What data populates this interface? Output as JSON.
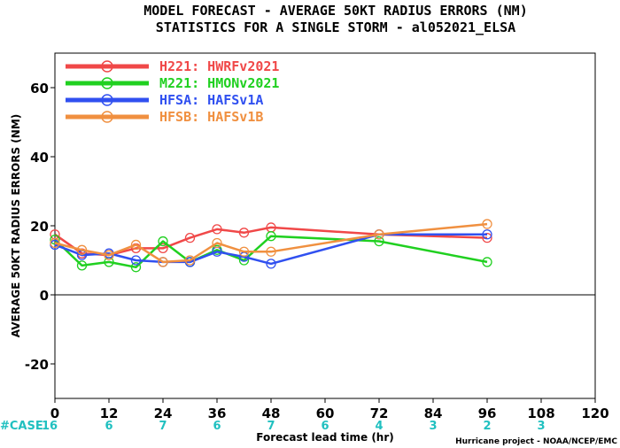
{
  "title_line1": "MODEL FORECAST - AVERAGE 50KT RADIUS ERRORS (NM)",
  "title_line2": "STATISTICS FOR A SINGLE STORM - al052021_ELSA",
  "credit": "Hurricane project - NOAA/NCEP/EMC",
  "case_label": "#CASE",
  "case_color": "#20c0c0",
  "chart_data": {
    "type": "line",
    "xlabel": "Forecast lead time (hr)",
    "ylabel": "AVERAGE 50KT RADIUS ERRORS (NM)",
    "xlim": [
      0,
      120
    ],
    "ylim": [
      -30,
      70
    ],
    "xticks": [
      0,
      12,
      24,
      36,
      48,
      60,
      72,
      84,
      96,
      108,
      120
    ],
    "yticks": [
      -20,
      0,
      20,
      40,
      60
    ],
    "zero_line": true,
    "grid": false,
    "legend_position": "top-left",
    "case_counts": {
      "x": [
        0,
        12,
        24,
        36,
        48,
        60,
        72,
        84,
        96,
        108
      ],
      "values": [
        "16",
        "6",
        "7",
        "6",
        "7",
        "6",
        "4",
        "3",
        "2",
        "3"
      ]
    },
    "series": [
      {
        "name": "H221: HWRFv2021",
        "color": "#f04848",
        "x": [
          0,
          6,
          12,
          18,
          24,
          30,
          36,
          42,
          48,
          72,
          96
        ],
        "y": [
          17.5,
          12,
          11.5,
          13.5,
          13.5,
          16.5,
          19,
          18,
          19.5,
          17.5,
          16.5
        ]
      },
      {
        "name": "M221: HMONv2021",
        "color": "#20d020",
        "x": [
          0,
          6,
          12,
          18,
          24,
          30,
          36,
          42,
          48,
          72,
          96
        ],
        "y": [
          16,
          8.5,
          9.5,
          8,
          15.5,
          9.5,
          13,
          10,
          17,
          15.5,
          9.5
        ]
      },
      {
        "name": "HFSA: HAFSv1A",
        "color": "#3050f0",
        "x": [
          0,
          6,
          12,
          18,
          24,
          30,
          36,
          42,
          48,
          72,
          96
        ],
        "y": [
          14.5,
          11.5,
          12,
          10,
          9.5,
          9.5,
          12.5,
          11,
          9,
          17.5,
          17.5
        ]
      },
      {
        "name": "HFSB: HAFSv1B",
        "color": "#f09040",
        "x": [
          0,
          6,
          12,
          18,
          24,
          30,
          36,
          42,
          48,
          72,
          96
        ],
        "y": [
          15,
          13,
          11.5,
          14.5,
          9.5,
          10,
          15,
          12.5,
          12.5,
          17.5,
          20.5
        ]
      }
    ]
  }
}
